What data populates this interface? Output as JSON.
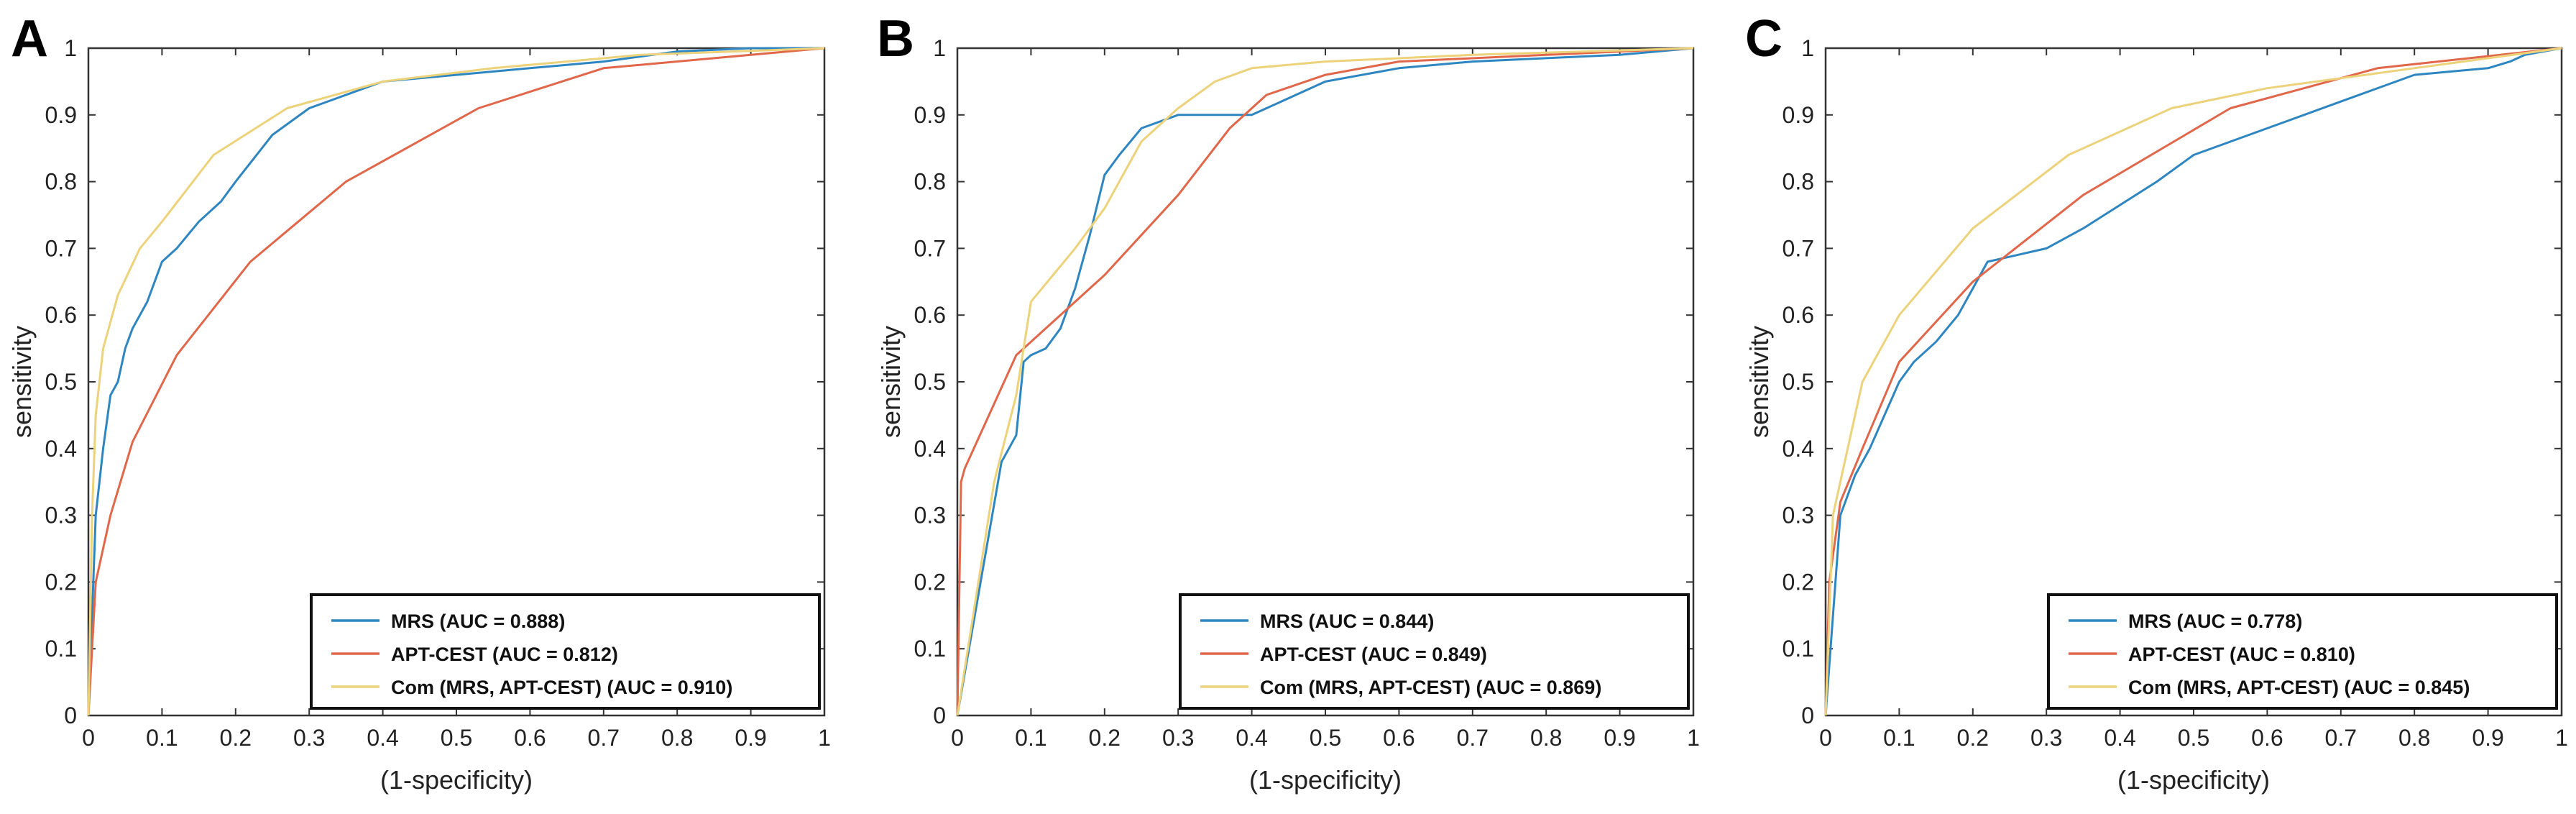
{
  "colors": {
    "mrs": "#2e86c1",
    "apt": "#e0674a",
    "com": "#ecd27a",
    "axis": "#333333"
  },
  "chart_data": [
    {
      "panel": "A",
      "type": "line",
      "xlabel": "(1-specificity)",
      "ylabel": "sensitivity",
      "xlim": [
        0,
        1
      ],
      "ylim": [
        0,
        1
      ],
      "xticks": [
        "0",
        "0.1",
        "0.2",
        "0.3",
        "0.4",
        "0.5",
        "0.6",
        "0.7",
        "0.8",
        "0.9",
        "1"
      ],
      "yticks": [
        "0",
        "0.1",
        "0.2",
        "0.3",
        "0.4",
        "0.5",
        "0.6",
        "0.7",
        "0.8",
        "0.9",
        "1"
      ],
      "grid": false,
      "legend_position": "bottom-right",
      "series": [
        {
          "name": "MRS (AUC = 0.888)",
          "color": "mrs",
          "x": [
            0,
            0.01,
            0.02,
            0.03,
            0.04,
            0.05,
            0.06,
            0.08,
            0.1,
            0.12,
            0.15,
            0.18,
            0.2,
            0.25,
            0.3,
            0.4,
            0.5,
            0.6,
            0.7,
            0.8,
            0.9,
            1
          ],
          "y": [
            0,
            0.3,
            0.4,
            0.48,
            0.5,
            0.55,
            0.58,
            0.62,
            0.68,
            0.7,
            0.74,
            0.77,
            0.8,
            0.87,
            0.91,
            0.95,
            0.96,
            0.97,
            0.98,
            0.995,
            1,
            1
          ]
        },
        {
          "name": "APT-CEST (AUC = 0.812)",
          "color": "apt",
          "x": [
            0,
            0.01,
            0.03,
            0.06,
            0.12,
            0.22,
            0.35,
            0.53,
            0.7,
            0.9,
            1
          ],
          "y": [
            0,
            0.2,
            0.3,
            0.41,
            0.54,
            0.68,
            0.8,
            0.91,
            0.97,
            0.99,
            1
          ]
        },
        {
          "name": "Com (MRS, APT-CEST) (AUC = 0.910)",
          "color": "com",
          "x": [
            0,
            0.005,
            0.01,
            0.02,
            0.04,
            0.07,
            0.1,
            0.17,
            0.27,
            0.4,
            0.55,
            0.75,
            1
          ],
          "y": [
            0,
            0.3,
            0.45,
            0.55,
            0.63,
            0.7,
            0.74,
            0.84,
            0.91,
            0.95,
            0.97,
            0.99,
            1
          ]
        }
      ]
    },
    {
      "panel": "B",
      "type": "line",
      "xlabel": "(1-specificity)",
      "ylabel": "sensitivity",
      "xlim": [
        0,
        1
      ],
      "ylim": [
        0,
        1
      ],
      "xticks": [
        "0",
        "0.1",
        "0.2",
        "0.3",
        "0.4",
        "0.5",
        "0.6",
        "0.7",
        "0.8",
        "0.9",
        "1"
      ],
      "yticks": [
        "0",
        "0.1",
        "0.2",
        "0.3",
        "0.4",
        "0.5",
        "0.6",
        "0.7",
        "0.8",
        "0.9",
        "1"
      ],
      "grid": false,
      "legend_position": "bottom-right",
      "series": [
        {
          "name": "MRS (AUC = 0.844)",
          "color": "mrs",
          "x": [
            0,
            0.06,
            0.08,
            0.09,
            0.1,
            0.12,
            0.14,
            0.16,
            0.18,
            0.2,
            0.22,
            0.25,
            0.3,
            0.35,
            0.4,
            0.5,
            0.6,
            0.7,
            0.8,
            0.9,
            1
          ],
          "y": [
            0,
            0.38,
            0.42,
            0.53,
            0.54,
            0.55,
            0.58,
            0.64,
            0.72,
            0.81,
            0.84,
            0.88,
            0.9,
            0.9,
            0.9,
            0.95,
            0.97,
            0.98,
            0.985,
            0.99,
            1
          ]
        },
        {
          "name": "APT-CEST (AUC = 0.849)",
          "color": "apt",
          "x": [
            0,
            0.005,
            0.01,
            0.08,
            0.2,
            0.3,
            0.37,
            0.42,
            0.5,
            0.6,
            0.8,
            1
          ],
          "y": [
            0,
            0.35,
            0.37,
            0.54,
            0.66,
            0.78,
            0.88,
            0.93,
            0.96,
            0.98,
            0.99,
            1
          ]
        },
        {
          "name": "Com (MRS, APT-CEST) (AUC = 0.869)",
          "color": "com",
          "x": [
            0,
            0.05,
            0.08,
            0.1,
            0.13,
            0.16,
            0.2,
            0.25,
            0.3,
            0.35,
            0.4,
            0.5,
            0.7,
            1
          ],
          "y": [
            0,
            0.35,
            0.48,
            0.62,
            0.66,
            0.7,
            0.76,
            0.86,
            0.91,
            0.95,
            0.97,
            0.98,
            0.99,
            1
          ]
        }
      ]
    },
    {
      "panel": "C",
      "type": "line",
      "xlabel": "(1-specificity)",
      "ylabel": "sensitivity",
      "xlim": [
        0,
        1
      ],
      "ylim": [
        0,
        1
      ],
      "xticks": [
        "0",
        "0.1",
        "0.2",
        "0.3",
        "0.4",
        "0.5",
        "0.6",
        "0.7",
        "0.8",
        "0.9",
        "1"
      ],
      "yticks": [
        "0",
        "0.1",
        "0.2",
        "0.3",
        "0.4",
        "0.5",
        "0.6",
        "0.7",
        "0.8",
        "0.9",
        "1"
      ],
      "grid": false,
      "legend_position": "bottom-right",
      "series": [
        {
          "name": "MRS (AUC = 0.778)",
          "color": "mrs",
          "x": [
            0,
            0.02,
            0.04,
            0.06,
            0.08,
            0.1,
            0.12,
            0.15,
            0.18,
            0.2,
            0.22,
            0.3,
            0.35,
            0.45,
            0.5,
            0.6,
            0.7,
            0.8,
            0.9,
            0.93,
            0.95,
            1
          ],
          "y": [
            0,
            0.3,
            0.36,
            0.4,
            0.45,
            0.5,
            0.53,
            0.56,
            0.6,
            0.64,
            0.68,
            0.7,
            0.73,
            0.8,
            0.84,
            0.88,
            0.92,
            0.96,
            0.97,
            0.98,
            0.99,
            1
          ]
        },
        {
          "name": "APT-CEST (AUC = 0.810)",
          "color": "apt",
          "x": [
            0,
            0.005,
            0.02,
            0.05,
            0.1,
            0.2,
            0.35,
            0.55,
            0.75,
            1
          ],
          "y": [
            0,
            0.2,
            0.32,
            0.4,
            0.53,
            0.65,
            0.78,
            0.91,
            0.97,
            1
          ]
        },
        {
          "name": "Com (MRS, APT-CEST) (AUC = 0.845)",
          "color": "com",
          "x": [
            0,
            0.01,
            0.03,
            0.05,
            0.1,
            0.2,
            0.33,
            0.47,
            0.6,
            0.8,
            1
          ],
          "y": [
            0,
            0.3,
            0.4,
            0.5,
            0.6,
            0.73,
            0.84,
            0.91,
            0.94,
            0.97,
            1
          ]
        }
      ]
    }
  ]
}
